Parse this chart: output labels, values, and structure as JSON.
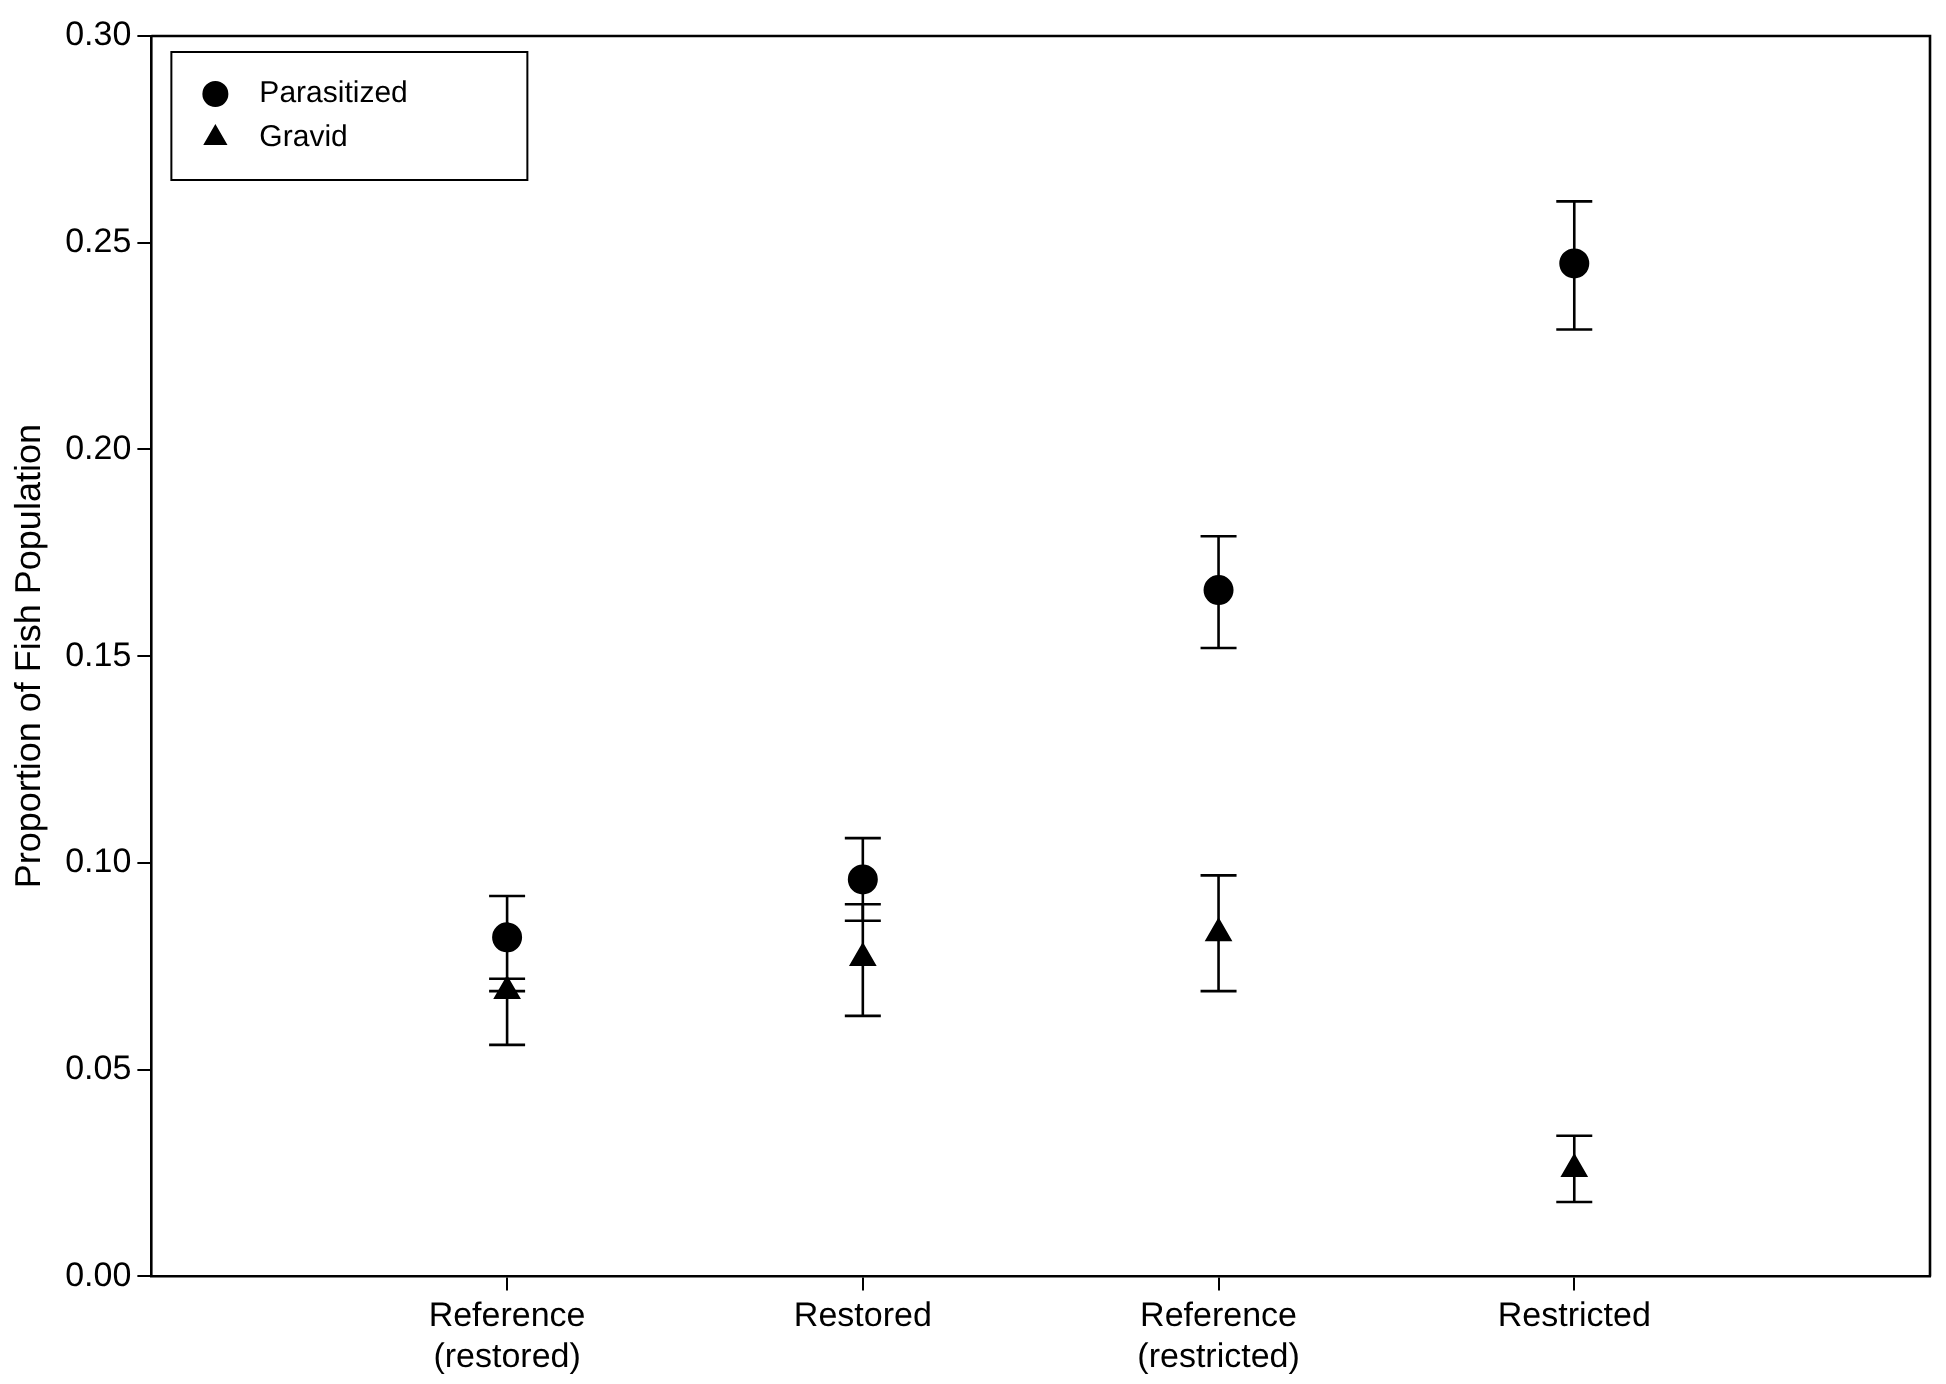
{
  "chart_data": {
    "type": "scatter",
    "ylabel": "Proportion of Fish Population",
    "categories": [
      "Reference (restored)",
      "Restored",
      "Reference (restricted)",
      "Restricted"
    ],
    "series": [
      {
        "name": "Parasitized",
        "color": "#000000",
        "marker": "circle",
        "values": [
          0.082,
          0.096,
          0.166,
          0.245
        ],
        "errors": [
          [
            0.072,
            0.092
          ],
          [
            0.086,
            0.106
          ],
          [
            0.152,
            0.179
          ],
          [
            0.229,
            0.26
          ]
        ]
      },
      {
        "name": "Gravid",
        "color": "#000000",
        "marker": "triangle",
        "values": [
          0.069,
          0.077,
          0.083,
          0.026
        ],
        "errors": [
          [
            0.056,
            0.069
          ],
          [
            0.063,
            0.09
          ],
          [
            0.069,
            0.097
          ],
          [
            0.018,
            0.034
          ]
        ]
      }
    ],
    "ylim": [
      0,
      0.3
    ],
    "yticks": [
      {
        "value": 0,
        "label": "0.00"
      },
      {
        "value": 0.05,
        "label": "0.05"
      },
      {
        "value": 0.1,
        "label": "0.10"
      },
      {
        "value": 0.15,
        "label": "0.15"
      },
      {
        "value": 0.2,
        "label": "0.20"
      },
      {
        "value": 0.25,
        "label": "0.25"
      },
      {
        "value": 0.3,
        "label": "0.30"
      }
    ],
    "grid": false,
    "legend": "top left"
  }
}
